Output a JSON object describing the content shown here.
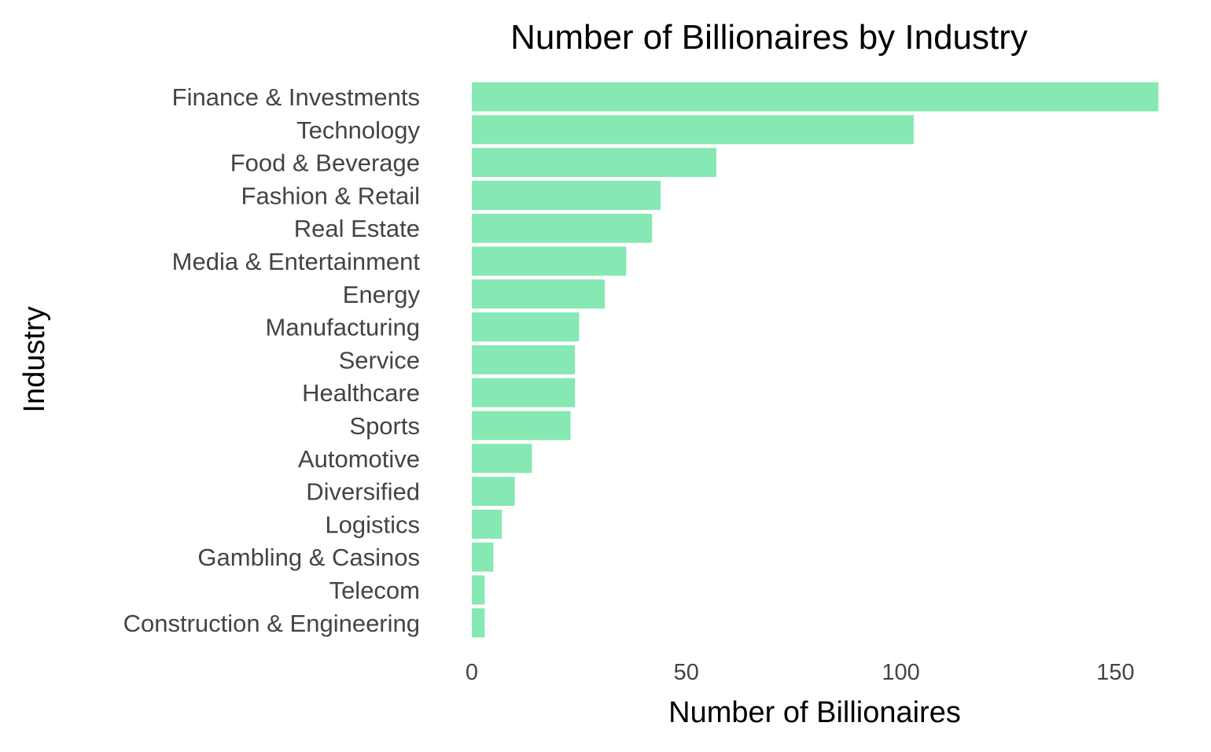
{
  "chart_data": {
    "type": "bar",
    "orientation": "horizontal",
    "title": "Number of Billionaires by Industry",
    "xlabel": "Number of Billionaires",
    "ylabel": "Industry",
    "categories": [
      "Finance & Investments",
      "Technology",
      "Food & Beverage",
      "Fashion & Retail",
      "Real Estate",
      "Media & Entertainment",
      "Energy",
      "Manufacturing",
      "Service",
      "Healthcare",
      "Sports",
      "Automotive",
      "Diversified",
      "Logistics",
      "Gambling & Casinos",
      "Telecom",
      "Construction & Engineering"
    ],
    "values": [
      160,
      103,
      57,
      44,
      42,
      36,
      31,
      25,
      24,
      24,
      23,
      14,
      10,
      7,
      5,
      3,
      3
    ],
    "xlim": [
      0,
      160
    ],
    "xticks": [
      0,
      50,
      100,
      150
    ],
    "bar_color": "#86e8b2",
    "grid": false,
    "legend": "none"
  }
}
